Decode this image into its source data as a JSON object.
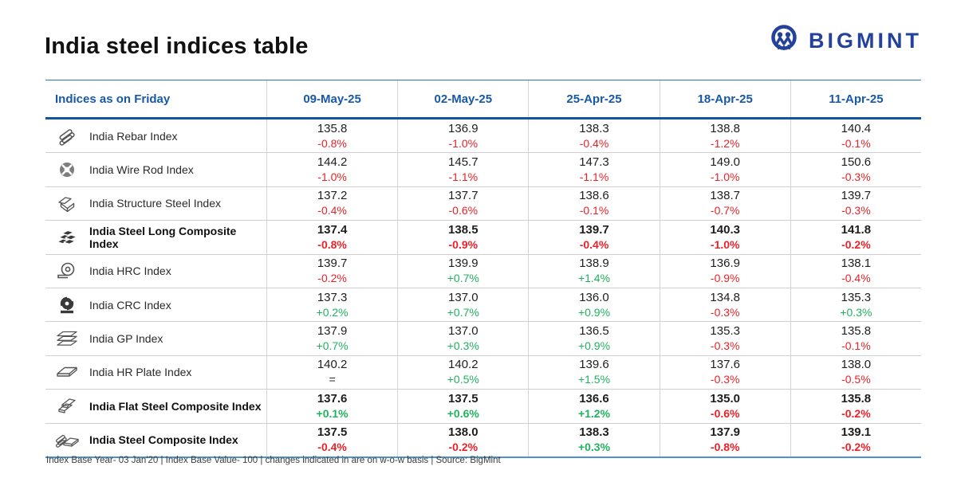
{
  "page": {
    "title": "India steel indices table"
  },
  "brand": {
    "name": "BIGMINT",
    "logo_color": "#24419b"
  },
  "colors": {
    "header_blue": "#1759a8",
    "negative_red": "#e8232a",
    "positive_green": "#22b15f"
  },
  "table": {
    "header": {
      "label": "Indices as on Friday",
      "dates": [
        "09-May-25",
        "02-May-25",
        "25-Apr-25",
        "18-Apr-25",
        "11-Apr-25"
      ]
    },
    "rows": [
      {
        "label": "India Rebar Index",
        "icon": "rebar-icon",
        "bold": false,
        "cells": [
          {
            "value": "135.8",
            "change": "-0.8%",
            "direction": "down"
          },
          {
            "value": "136.9",
            "change": "-1.0%",
            "direction": "down"
          },
          {
            "value": "138.3",
            "change": "-0.4%",
            "direction": "down"
          },
          {
            "value": "138.8",
            "change": "-1.2%",
            "direction": "down"
          },
          {
            "value": "140.4",
            "change": "-0.1%",
            "direction": "down"
          }
        ]
      },
      {
        "label": "India Wire Rod Index",
        "icon": "wire-rod-coil-icon",
        "bold": false,
        "cells": [
          {
            "value": "144.2",
            "change": "-1.0%",
            "direction": "down"
          },
          {
            "value": "145.7",
            "change": "-1.1%",
            "direction": "down"
          },
          {
            "value": "147.3",
            "change": "-1.1%",
            "direction": "down"
          },
          {
            "value": "149.0",
            "change": "-1.0%",
            "direction": "down"
          },
          {
            "value": "150.6",
            "change": "-0.3%",
            "direction": "down"
          }
        ]
      },
      {
        "label": "India Structure Steel Index",
        "icon": "structure-steel-icon",
        "bold": false,
        "cells": [
          {
            "value": "137.2",
            "change": "-0.4%",
            "direction": "down"
          },
          {
            "value": "137.7",
            "change": "-0.6%",
            "direction": "down"
          },
          {
            "value": "138.6",
            "change": "-0.1%",
            "direction": "down"
          },
          {
            "value": "138.7",
            "change": "-0.7%",
            "direction": "down"
          },
          {
            "value": "139.7",
            "change": "-0.3%",
            "direction": "down"
          }
        ]
      },
      {
        "label": "India Steel Long Composite Index",
        "icon": "long-steel-stack-icon",
        "bold": true,
        "cells": [
          {
            "value": "137.4",
            "change": "-0.8%",
            "direction": "down"
          },
          {
            "value": "138.5",
            "change": "-0.9%",
            "direction": "down"
          },
          {
            "value": "139.7",
            "change": "-0.4%",
            "direction": "down"
          },
          {
            "value": "140.3",
            "change": "-1.0%",
            "direction": "down"
          },
          {
            "value": "141.8",
            "change": "-0.2%",
            "direction": "down"
          }
        ]
      },
      {
        "label": "India HRC Index",
        "icon": "hrc-coil-icon",
        "bold": false,
        "cells": [
          {
            "value": "139.7",
            "change": "-0.2%",
            "direction": "down"
          },
          {
            "value": "139.9",
            "change": "+0.7%",
            "direction": "up"
          },
          {
            "value": "138.9",
            "change": "+1.4%",
            "direction": "up"
          },
          {
            "value": "136.9",
            "change": "-0.9%",
            "direction": "down"
          },
          {
            "value": "138.1",
            "change": "-0.4%",
            "direction": "down"
          }
        ]
      },
      {
        "label": "India CRC Index",
        "icon": "crc-coil-icon",
        "bold": false,
        "cells": [
          {
            "value": "137.3",
            "change": "+0.2%",
            "direction": "up"
          },
          {
            "value": "137.0",
            "change": "+0.7%",
            "direction": "up"
          },
          {
            "value": "136.0",
            "change": "+0.9%",
            "direction": "up"
          },
          {
            "value": "134.8",
            "change": "-0.3%",
            "direction": "down"
          },
          {
            "value": "135.3",
            "change": "+0.3%",
            "direction": "up"
          }
        ]
      },
      {
        "label": "India GP Index",
        "icon": "gp-sheets-icon",
        "bold": false,
        "cells": [
          {
            "value": "137.9",
            "change": "+0.7%",
            "direction": "up"
          },
          {
            "value": "137.0",
            "change": "+0.3%",
            "direction": "up"
          },
          {
            "value": "136.5",
            "change": "+0.9%",
            "direction": "up"
          },
          {
            "value": "135.3",
            "change": "-0.3%",
            "direction": "down"
          },
          {
            "value": "135.8",
            "change": "-0.1%",
            "direction": "down"
          }
        ]
      },
      {
        "label": "India HR Plate Index",
        "icon": "hr-plate-icon",
        "bold": false,
        "cells": [
          {
            "value": "140.2",
            "change": "=",
            "direction": "flat"
          },
          {
            "value": "140.2",
            "change": "+0.5%",
            "direction": "up"
          },
          {
            "value": "139.6",
            "change": "+1.5%",
            "direction": "up"
          },
          {
            "value": "137.6",
            "change": "-0.3%",
            "direction": "down"
          },
          {
            "value": "138.0",
            "change": "-0.5%",
            "direction": "down"
          }
        ]
      },
      {
        "label": "India Flat Steel Composite Index",
        "icon": "flat-steel-stack-icon",
        "bold": true,
        "cells": [
          {
            "value": "137.6",
            "change": "+0.1%",
            "direction": "up"
          },
          {
            "value": "137.5",
            "change": "+0.6%",
            "direction": "up"
          },
          {
            "value": "136.6",
            "change": "+1.2%",
            "direction": "up"
          },
          {
            "value": "135.0",
            "change": "-0.6%",
            "direction": "down"
          },
          {
            "value": "135.8",
            "change": "-0.2%",
            "direction": "down"
          }
        ]
      },
      {
        "label": "India Steel Composite Index",
        "icon": "steel-composite-icon",
        "bold": true,
        "cells": [
          {
            "value": "137.5",
            "change": "-0.4%",
            "direction": "down"
          },
          {
            "value": "138.0",
            "change": "-0.2%",
            "direction": "down"
          },
          {
            "value": "138.3",
            "change": "+0.3%",
            "direction": "up"
          },
          {
            "value": "137.9",
            "change": "-0.8%",
            "direction": "down"
          },
          {
            "value": "139.1",
            "change": "-0.2%",
            "direction": "down"
          }
        ]
      }
    ]
  },
  "footer": {
    "note": "Index Base Year- 03 Jan'20 | Index Base Value- 100 | changes indicated in are on w-o-w basis | Source: BigMint"
  }
}
